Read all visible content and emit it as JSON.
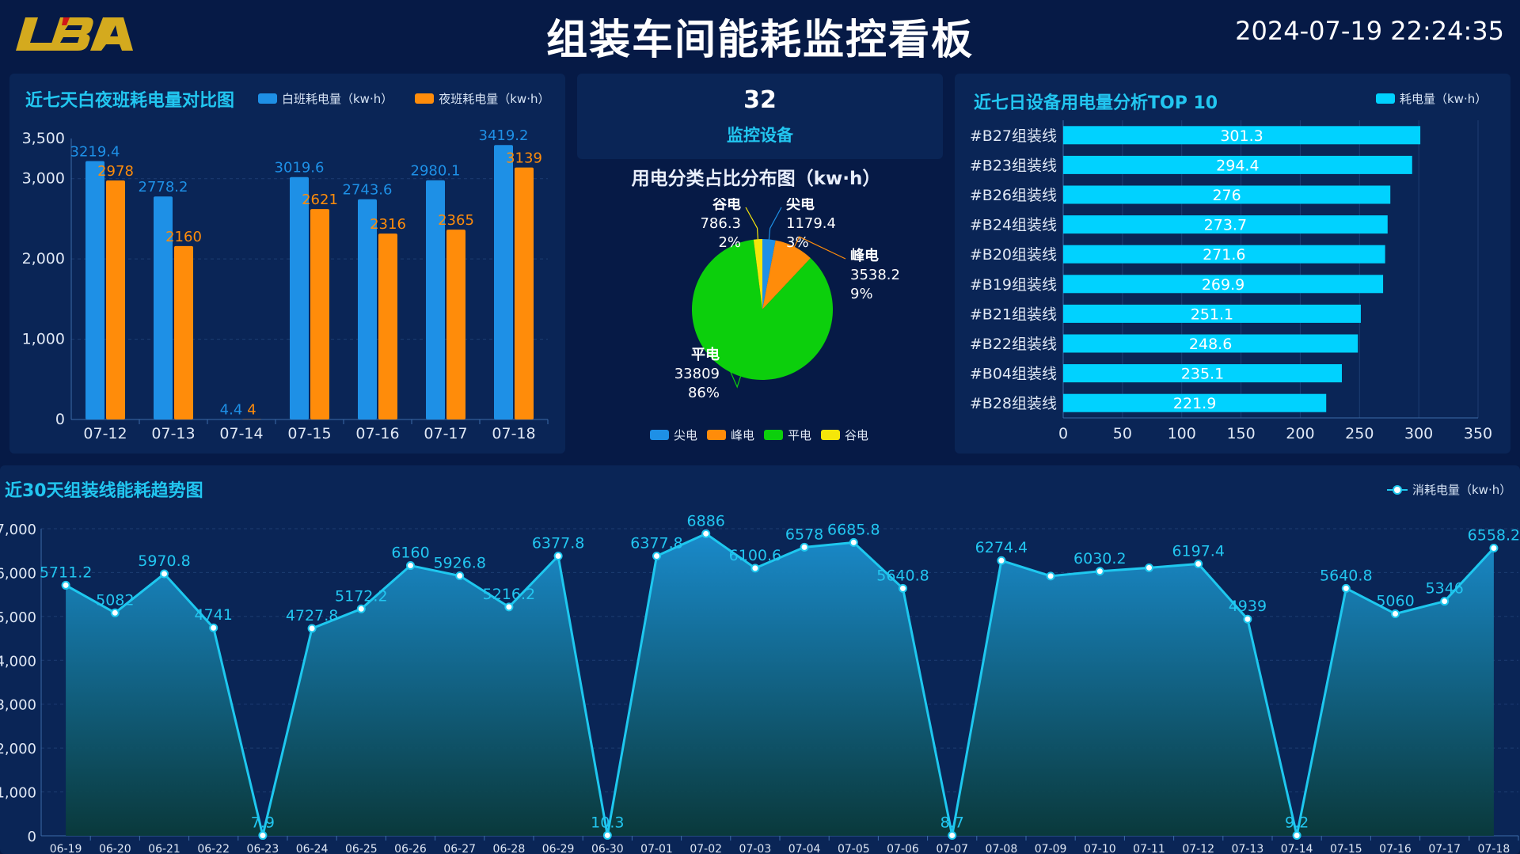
{
  "header": {
    "logo_text": "LBA",
    "title": "组装车间能耗监控看板",
    "datetime": "2024-07-19 22:24:35"
  },
  "colors": {
    "background": "#061a46",
    "panel": "#0a2556",
    "accent": "#22c6f0",
    "day_bar": "#1e90e6",
    "night_bar": "#ff8c0a",
    "top_bar": "#00d2ff",
    "trend_line": "#1ec8ef"
  },
  "stats": {
    "devices_count": "32",
    "devices_label": "监控设备"
  },
  "panels": {
    "day_night_title": "近七天白夜班耗电量对比图",
    "pie_title": "用电分类占比分布图（kw·h）",
    "top10_title": "近七日设备用电量分析TOP 10",
    "trend_title": "近30天组装线能耗趋势图"
  },
  "chart_data": [
    {
      "type": "bar",
      "title": "近七天白夜班耗电量对比图",
      "categories": [
        "07-12",
        "07-13",
        "07-14",
        "07-15",
        "07-16",
        "07-17",
        "07-18"
      ],
      "series": [
        {
          "name": "白班耗电量（kw·h）",
          "values": [
            3219.4,
            2778.2,
            4.4,
            3019.6,
            2743.6,
            2980.1,
            3419.2
          ]
        },
        {
          "name": "夜班耗电量（kw·h）",
          "values": [
            2978,
            2160,
            4,
            2621,
            2316,
            2365,
            3139
          ]
        }
      ],
      "ylim": [
        0,
        3500
      ],
      "yticks": [
        "0",
        "1,000",
        "2,000",
        "3,000",
        "3,500"
      ],
      "legend": "top-right",
      "grid": true
    },
    {
      "type": "pie",
      "title": "用电分类占比分布图（kw·h）",
      "slices": [
        {
          "name": "尖电",
          "value": 1179.4,
          "percent": "3%",
          "color": "#1e90e6"
        },
        {
          "name": "峰电",
          "value": 3538.2,
          "percent": "9%",
          "color": "#ff8c0a"
        },
        {
          "name": "平电",
          "value": 33809,
          "percent": "86%",
          "color": "#0ccf0c"
        },
        {
          "name": "谷电",
          "value": 786.3,
          "percent": "2%",
          "color": "#f5e60a"
        }
      ],
      "legend": "bottom"
    },
    {
      "type": "bar",
      "orientation": "horizontal",
      "title": "近七日设备用电量分析TOP 10",
      "categories": [
        "#B27组装线",
        "#B23组装线",
        "#B26组装线",
        "#B24组装线",
        "#B20组装线",
        "#B19组装线",
        "#B21组装线",
        "#B22组装线",
        "#B04组装线",
        "#B28组装线"
      ],
      "series": [
        {
          "name": "耗电量（kw·h）",
          "values": [
            301.3,
            294.4,
            276,
            273.7,
            271.6,
            269.9,
            251.1,
            248.6,
            235.1,
            221.9
          ]
        }
      ],
      "xlim": [
        0,
        350
      ],
      "xticks": [
        "0",
        "50",
        "100",
        "150",
        "200",
        "250",
        "300",
        "350"
      ],
      "legend": "top-right",
      "grid": true
    },
    {
      "type": "area",
      "title": "近30天组装线能耗趋势图",
      "x": [
        "06-19",
        "06-20",
        "06-21",
        "06-22",
        "06-23",
        "06-24",
        "06-25",
        "06-26",
        "06-27",
        "06-28",
        "06-29",
        "06-30",
        "07-01",
        "07-02",
        "07-03",
        "07-04",
        "07-05",
        "07-06",
        "07-07",
        "07-08",
        "07-09",
        "07-10",
        "07-11",
        "07-12",
        "07-13",
        "07-14",
        "07-15",
        "07-16",
        "07-17",
        "07-18"
      ],
      "series": [
        {
          "name": "消耗电量（kw·h）",
          "values": [
            5711.2,
            5082,
            5970.8,
            4741,
            7.9,
            4727.8,
            5172.2,
            6160,
            5926.8,
            5216.2,
            6377.8,
            10.3,
            6377.8,
            6886,
            6100.6,
            6578,
            6685.8,
            5640.8,
            8.7,
            6274.4,
            5920,
            6030.2,
            6110,
            6197.4,
            4939,
            9.2,
            5640.8,
            5060,
            5346,
            6558.2
          ]
        }
      ],
      "labels": [
        "5711.2",
        "5082",
        "5970.8",
        "4741",
        "7.9",
        "4727.8",
        "5172.2",
        "6160",
        "5926.8",
        "5216.2",
        "6377.8",
        "10.3",
        "6377.8",
        "6886",
        "6100.6",
        "6578",
        "6685.8",
        "5640.8",
        "8.7",
        "6274.4",
        "",
        "6030.2",
        "",
        "6197.4",
        "4939",
        "9.2",
        "5640.8",
        "5060",
        "5346",
        "6558.2"
      ],
      "ylim": [
        0,
        7000
      ],
      "yticks": [
        "0",
        "1,000",
        "2,000",
        "3,000",
        "4,000",
        "5,000",
        "6,000",
        "7,000"
      ],
      "legend": "top-right",
      "grid": true
    }
  ]
}
